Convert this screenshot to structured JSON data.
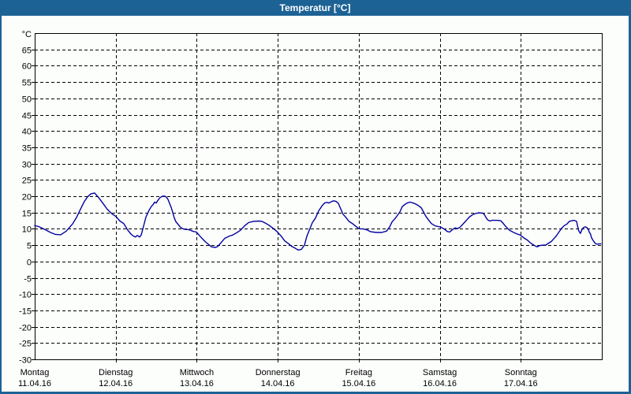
{
  "window": {
    "title": "Temperatur [°C]"
  },
  "colors": {
    "titlebar_bg": "#1d6295",
    "titlebar_text": "#ffffff",
    "window_border": "#1d6295",
    "plot_bg": "#fcfefc",
    "axis": "#000000",
    "grid": "#000000",
    "line": "#0000a0"
  },
  "chart_data": {
    "type": "line",
    "title": "Temperatur [°C]",
    "y_unit_label": "°C",
    "ylim": [
      -30,
      70
    ],
    "y_ticks": [
      65,
      60,
      55,
      50,
      45,
      40,
      35,
      30,
      25,
      20,
      15,
      10,
      5,
      0,
      -5,
      -10,
      -15,
      -20,
      -25,
      -30
    ],
    "grid": "dashed",
    "legend": "none",
    "x_days": [
      {
        "label": "Montag",
        "date": "11.04.16"
      },
      {
        "label": "Dienstag",
        "date": "12.04.16"
      },
      {
        "label": "Mittwoch",
        "date": "13.04.16"
      },
      {
        "label": "Donnerstag",
        "date": "14.04.16"
      },
      {
        "label": "Freitag",
        "date": "15.04.16"
      },
      {
        "label": "Samstag",
        "date": "16.04.16"
      },
      {
        "label": "Sonntag",
        "date": "17.04.16"
      }
    ],
    "x_gridline_days": [
      1,
      2,
      3,
      4,
      5,
      6
    ],
    "series": [
      {
        "name": "Temperatur",
        "color": "#0000a0",
        "points": [
          [
            0,
            11
          ],
          [
            0.049,
            10.7
          ],
          [
            0.127,
            9.8
          ],
          [
            0.195,
            8.9
          ],
          [
            0.253,
            8.3
          ],
          [
            0.321,
            8.2
          ],
          [
            0.389,
            9.3
          ],
          [
            0.467,
            11.5
          ],
          [
            0.516,
            13.5
          ],
          [
            0.565,
            16
          ],
          [
            0.613,
            18.4
          ],
          [
            0.652,
            19.8
          ],
          [
            0.691,
            20.7
          ],
          [
            0.74,
            21
          ],
          [
            0.789,
            19.6
          ],
          [
            0.837,
            18
          ],
          [
            0.896,
            16
          ],
          [
            0.954,
            14.6
          ],
          [
            1.003,
            13.8
          ],
          [
            1.051,
            12.4
          ],
          [
            1.1,
            11.6
          ],
          [
            1.149,
            9.6
          ],
          [
            1.188,
            8.4
          ],
          [
            1.217,
            7.8
          ],
          [
            1.246,
            7.5
          ],
          [
            1.266,
            8
          ],
          [
            1.295,
            7.5
          ],
          [
            1.314,
            8.1
          ],
          [
            1.343,
            10.7
          ],
          [
            1.373,
            13.6
          ],
          [
            1.412,
            15.7
          ],
          [
            1.441,
            16.9
          ],
          [
            1.46,
            17.4
          ],
          [
            1.48,
            18.2
          ],
          [
            1.499,
            17.9
          ],
          [
            1.519,
            18.7
          ],
          [
            1.548,
            19.6
          ],
          [
            1.577,
            20
          ],
          [
            1.606,
            20
          ],
          [
            1.626,
            19.7
          ],
          [
            1.645,
            19
          ],
          [
            1.665,
            17.8
          ],
          [
            1.684,
            16.6
          ],
          [
            1.704,
            15
          ],
          [
            1.723,
            13.3
          ],
          [
            1.743,
            12.2
          ],
          [
            1.772,
            11.3
          ],
          [
            1.801,
            10.4
          ],
          [
            1.84,
            9.9
          ],
          [
            1.908,
            9.7
          ],
          [
            1.957,
            9.2
          ],
          [
            1.996,
            9
          ],
          [
            2.045,
            7.6
          ],
          [
            2.103,
            6.1
          ],
          [
            2.142,
            5.3
          ],
          [
            2.181,
            4.5
          ],
          [
            2.23,
            4.3
          ],
          [
            2.259,
            4.6
          ],
          [
            2.298,
            5.7
          ],
          [
            2.346,
            7.1
          ],
          [
            2.405,
            7.8
          ],
          [
            2.444,
            8.1
          ],
          [
            2.492,
            8.8
          ],
          [
            2.541,
            9.6
          ],
          [
            2.59,
            10.9
          ],
          [
            2.639,
            11.9
          ],
          [
            2.697,
            12.3
          ],
          [
            2.765,
            12.4
          ],
          [
            2.804,
            12.3
          ],
          [
            2.843,
            11.8
          ],
          [
            2.892,
            11.1
          ],
          [
            2.94,
            10.2
          ],
          [
            2.989,
            9.2
          ],
          [
            3.038,
            7.9
          ],
          [
            3.086,
            6.3
          ],
          [
            3.135,
            5.4
          ],
          [
            3.174,
            4.6
          ],
          [
            3.213,
            4.1
          ],
          [
            3.252,
            3.5
          ],
          [
            3.291,
            3.7
          ],
          [
            3.33,
            5
          ],
          [
            3.359,
            7.7
          ],
          [
            3.388,
            9.5
          ],
          [
            3.427,
            11.9
          ],
          [
            3.466,
            13.3
          ],
          [
            3.505,
            15.5
          ],
          [
            3.554,
            17.3
          ],
          [
            3.583,
            18
          ],
          [
            3.612,
            18.1
          ],
          [
            3.631,
            17.9
          ],
          [
            3.66,
            18.3
          ],
          [
            3.69,
            18.6
          ],
          [
            3.719,
            18.4
          ],
          [
            3.748,
            17.8
          ],
          [
            3.777,
            16.1
          ],
          [
            3.806,
            14.5
          ],
          [
            3.845,
            13.4
          ],
          [
            3.875,
            12.4
          ],
          [
            3.923,
            11.6
          ],
          [
            3.962,
            10.8
          ],
          [
            3.992,
            10.2
          ],
          [
            4.021,
            10
          ],
          [
            4.05,
            10
          ],
          [
            4.099,
            9.7
          ],
          [
            4.147,
            9.1
          ],
          [
            4.216,
            8.9
          ],
          [
            4.284,
            8.9
          ],
          [
            4.342,
            9.3
          ],
          [
            4.381,
            10.6
          ],
          [
            4.41,
            12.1
          ],
          [
            4.459,
            13.5
          ],
          [
            4.508,
            15.2
          ],
          [
            4.537,
            16.8
          ],
          [
            4.576,
            17.6
          ],
          [
            4.605,
            18
          ],
          [
            4.634,
            18.2
          ],
          [
            4.673,
            17.9
          ],
          [
            4.702,
            17.6
          ],
          [
            4.731,
            17.2
          ],
          [
            4.77,
            16.5
          ],
          [
            4.799,
            15.2
          ],
          [
            4.829,
            13.8
          ],
          [
            4.868,
            12.5
          ],
          [
            4.897,
            11.6
          ],
          [
            4.945,
            10.9
          ],
          [
            4.984,
            10.7
          ],
          [
            5.023,
            10.4
          ],
          [
            5.062,
            9.8
          ],
          [
            5.091,
            9.2
          ],
          [
            5.121,
            9
          ],
          [
            5.16,
            9.8
          ],
          [
            5.189,
            10.3
          ],
          [
            5.218,
            10.1
          ],
          [
            5.247,
            10.4
          ],
          [
            5.277,
            11.2
          ],
          [
            5.306,
            12
          ],
          [
            5.335,
            12.8
          ],
          [
            5.364,
            13.6
          ],
          [
            5.403,
            14.3
          ],
          [
            5.442,
            14.7
          ],
          [
            5.481,
            14.9
          ],
          [
            5.53,
            14.8
          ],
          [
            5.549,
            14.4
          ],
          [
            5.568,
            13.6
          ],
          [
            5.588,
            12.8
          ],
          [
            5.617,
            12.4
          ],
          [
            5.646,
            12.6
          ],
          [
            5.704,
            12.6
          ],
          [
            5.753,
            12.5
          ],
          [
            5.782,
            11.7
          ],
          [
            5.811,
            10.8
          ],
          [
            5.831,
            10.3
          ],
          [
            5.86,
            9.6
          ],
          [
            5.889,
            9.2
          ],
          [
            5.918,
            8.8
          ],
          [
            5.957,
            8.4
          ],
          [
            5.986,
            8.2
          ],
          [
            6.015,
            7.7
          ],
          [
            6.045,
            7.1
          ],
          [
            6.084,
            6.5
          ],
          [
            6.113,
            5.8
          ],
          [
            6.142,
            5.3
          ],
          [
            6.181,
            4.7
          ],
          [
            6.2,
            4.5
          ],
          [
            6.239,
            4.9
          ],
          [
            6.278,
            5
          ],
          [
            6.308,
            5
          ],
          [
            6.337,
            5.5
          ],
          [
            6.376,
            6.1
          ],
          [
            6.405,
            6.9
          ],
          [
            6.434,
            7.7
          ],
          [
            6.473,
            9.1
          ],
          [
            6.502,
            10.1
          ],
          [
            6.532,
            10.9
          ],
          [
            6.571,
            11.5
          ],
          [
            6.6,
            12.3
          ],
          [
            6.629,
            12.5
          ],
          [
            6.658,
            12.6
          ],
          [
            6.688,
            12.3
          ],
          [
            6.697,
            11.2
          ],
          [
            6.717,
            9.3
          ],
          [
            6.736,
            8.6
          ],
          [
            6.756,
            9.8
          ],
          [
            6.775,
            10.4
          ],
          [
            6.795,
            10.6
          ],
          [
            6.814,
            10.4
          ],
          [
            6.833,
            9.9
          ],
          [
            6.843,
            9.1
          ],
          [
            6.862,
            8.3
          ],
          [
            6.872,
            7.3
          ],
          [
            6.891,
            6.5
          ],
          [
            6.911,
            5.8
          ],
          [
            6.92,
            5.5
          ],
          [
            6.94,
            5.3
          ],
          [
            6.969,
            5.4
          ],
          [
            6.988,
            5.4
          ]
        ]
      }
    ]
  }
}
